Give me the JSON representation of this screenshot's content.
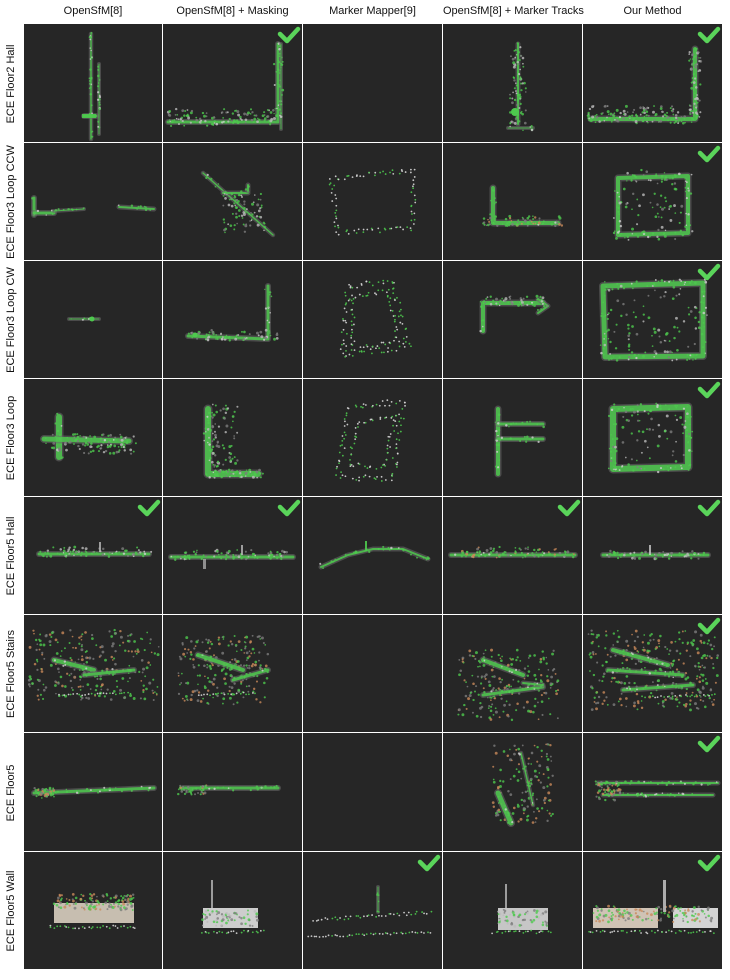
{
  "columns": [
    "OpenSfM[8]",
    "OpenSfM[8] + Masking",
    "Marker Mapper[9]",
    "OpenSfM[8] + Marker Tracks",
    "Our Method"
  ],
  "rows": [
    {
      "label": "ECE Floor2 Hall",
      "shapes": [
        "floor2_a",
        "floor2_b",
        "empty",
        "floor2_d",
        "floor2_e"
      ],
      "check": [
        false,
        true,
        false,
        false,
        true
      ]
    },
    {
      "label": "ECE Floor3 Loop CCW",
      "shapes": [
        "ccw_a",
        "ccw_b",
        "ccw_c",
        "ccw_d",
        "ccw_e"
      ],
      "check": [
        false,
        false,
        false,
        false,
        true
      ]
    },
    {
      "label": "ECE Floor3 Loop CW",
      "shapes": [
        "cw_a",
        "cw_b",
        "cw_c",
        "cw_d",
        "cw_e"
      ],
      "check": [
        false,
        false,
        false,
        false,
        true
      ]
    },
    {
      "label": "ECE Floor3 Loop",
      "shapes": [
        "loop_a",
        "loop_b",
        "loop_c",
        "loop_d",
        "loop_e"
      ],
      "check": [
        false,
        false,
        false,
        false,
        true
      ]
    },
    {
      "label": "ECE Floor5 Hall",
      "shapes": [
        "f5h_a",
        "f5h_b",
        "f5h_c",
        "f5h_d",
        "f5h_e"
      ],
      "check": [
        true,
        true,
        false,
        true,
        true
      ]
    },
    {
      "label": "ECE Floor5 Stairs",
      "shapes": [
        "st_a",
        "st_b",
        "empty",
        "st_d",
        "st_e"
      ],
      "check": [
        false,
        false,
        false,
        false,
        true
      ]
    },
    {
      "label": "ECE Floor5",
      "shapes": [
        "f5_a",
        "f5_b",
        "empty",
        "f5_d",
        "f5_e"
      ],
      "check": [
        false,
        false,
        false,
        false,
        true
      ]
    },
    {
      "label": "ECE Floor5 Wall",
      "shapes": [
        "w_a",
        "w_b",
        "w_c",
        "w_d",
        "w_e"
      ],
      "check": [
        false,
        false,
        true,
        false,
        true
      ]
    }
  ],
  "colors": {
    "background": "#262626",
    "points": "#4ec94e",
    "check": "#5ad45a",
    "warm": "#c98a5a",
    "grey": "#9a9a9a"
  }
}
